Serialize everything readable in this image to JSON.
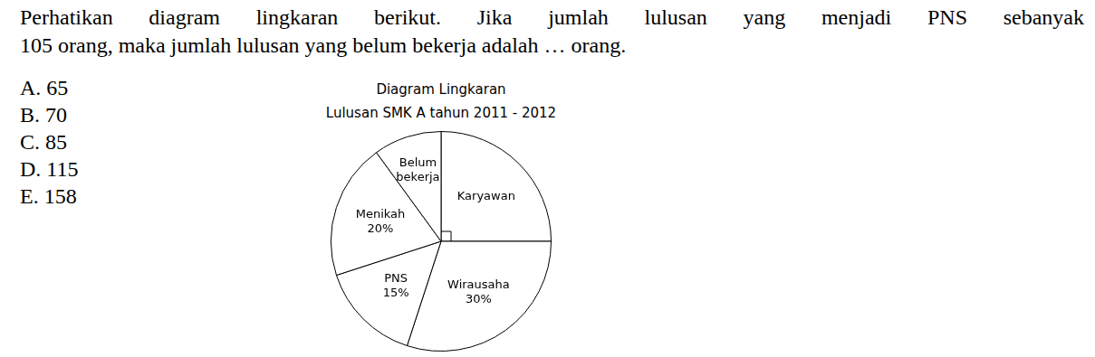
{
  "question_lines": [
    "Perhatikan diagram lingkaran berikut. Jika jumlah lulusan yang menjadi PNS sebanyak",
    "105 orang, maka jumlah lulusan yang belum bekerja adalah … orang."
  ],
  "options": [
    {
      "label": "A.",
      "value": 65
    },
    {
      "label": "B.",
      "value": 70
    },
    {
      "label": "C.",
      "value": 85
    },
    {
      "label": "D.",
      "value": 115
    },
    {
      "label": "E.",
      "value": 158
    }
  ],
  "chart_data": {
    "type": "pie",
    "title": "Diagram Lingkaran",
    "subtitle": "Lulusan SMK A tahun 2011 - 2012",
    "categories": [
      "Karyawan",
      "Wirausaha",
      "PNS",
      "Menikah",
      "Belum bekerja"
    ],
    "values": [
      25,
      30,
      15,
      20,
      10
    ],
    "value_labels": [
      null,
      "30%",
      "15%",
      "20%",
      null
    ],
    "color": "#ffffff",
    "data_labels": true
  }
}
